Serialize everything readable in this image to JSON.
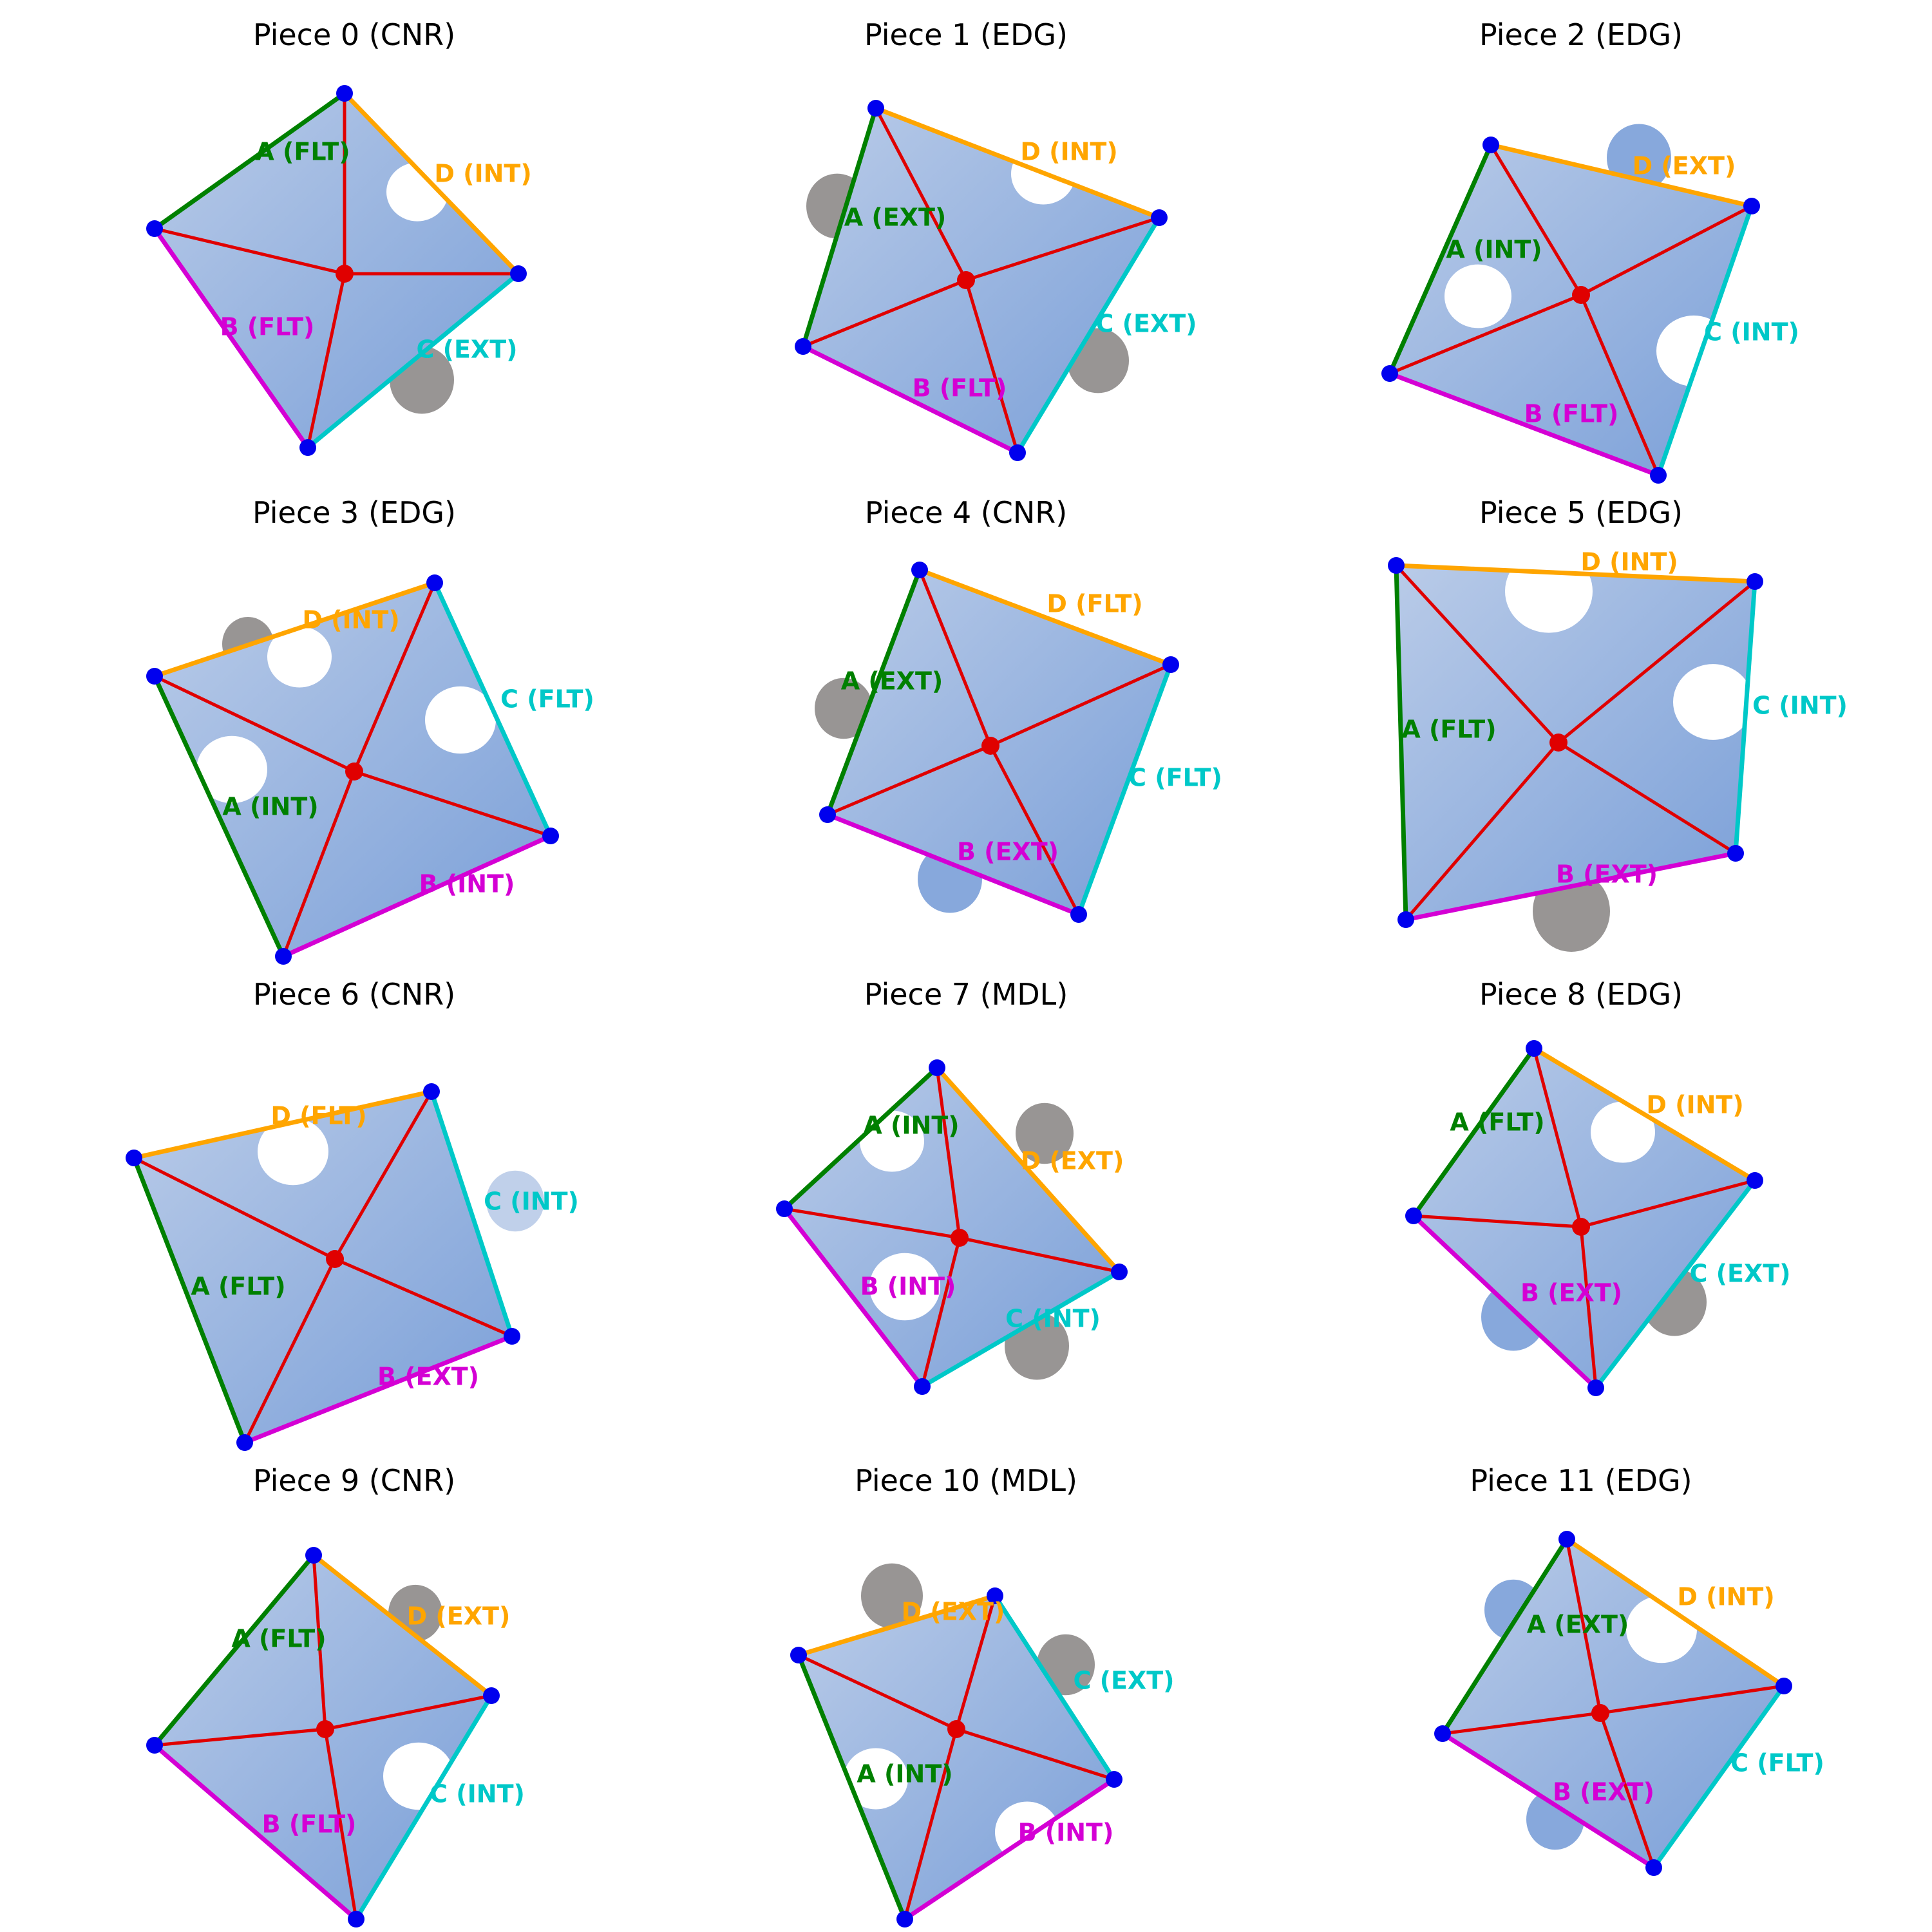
{
  "figure": {
    "colors": {
      "A": "#008000",
      "B": "#d400d4",
      "C": "#00c8c8",
      "D": "#ffa500",
      "spoke": "#e00000",
      "corner": "#0000ee",
      "center": "#e00000",
      "piece_fill": "#7a9fd8",
      "piece_fill_light": "#b9cbe8",
      "photo_gray": "#8d8a88",
      "snow": "#e8ecf2"
    },
    "pieces": [
      {
        "title": "Piece 0 (CNR)",
        "edges": [
          {
            "side": "A",
            "label": "A (FLT)"
          },
          {
            "side": "B",
            "label": "B (FLT)"
          },
          {
            "side": "C",
            "label": "C (EXT)"
          },
          {
            "side": "D",
            "label": "D (INT)"
          }
        ]
      },
      {
        "title": "Piece 1 (EDG)",
        "edges": [
          {
            "side": "A",
            "label": "A (EXT)"
          },
          {
            "side": "B",
            "label": "B (FLT)"
          },
          {
            "side": "C",
            "label": "C (EXT)"
          },
          {
            "side": "D",
            "label": "D (INT)"
          }
        ]
      },
      {
        "title": "Piece 2 (EDG)",
        "edges": [
          {
            "side": "A",
            "label": "A (INT)"
          },
          {
            "side": "B",
            "label": "B (FLT)"
          },
          {
            "side": "C",
            "label": "C (INT)"
          },
          {
            "side": "D",
            "label": "D (EXT)"
          }
        ]
      },
      {
        "title": "Piece 3 (EDG)",
        "edges": [
          {
            "side": "A",
            "label": "A (INT)"
          },
          {
            "side": "B",
            "label": "B (INT)"
          },
          {
            "side": "C",
            "label": "C (FLT)"
          },
          {
            "side": "D",
            "label": "D (INT)"
          }
        ]
      },
      {
        "title": "Piece 4 (CNR)",
        "edges": [
          {
            "side": "A",
            "label": "A (EXT)"
          },
          {
            "side": "B",
            "label": "B (EXT)"
          },
          {
            "side": "C",
            "label": "C (FLT)"
          },
          {
            "side": "D",
            "label": "D (FLT)"
          }
        ]
      },
      {
        "title": "Piece 5 (EDG)",
        "edges": [
          {
            "side": "A",
            "label": "A (FLT)"
          },
          {
            "side": "B",
            "label": "B (EXT)"
          },
          {
            "side": "C",
            "label": "C (INT)"
          },
          {
            "side": "D",
            "label": "D (INT)"
          }
        ]
      },
      {
        "title": "Piece 6 (CNR)",
        "edges": [
          {
            "side": "A",
            "label": "A (FLT)"
          },
          {
            "side": "B",
            "label": "B (EXT)"
          },
          {
            "side": "C",
            "label": "C (INT)"
          },
          {
            "side": "D",
            "label": "D (FLT)"
          }
        ]
      },
      {
        "title": "Piece 7 (MDL)",
        "edges": [
          {
            "side": "A",
            "label": "A (INT)"
          },
          {
            "side": "B",
            "label": "B (INT)"
          },
          {
            "side": "C",
            "label": "C (INT)"
          },
          {
            "side": "D",
            "label": "D (EXT)"
          }
        ]
      },
      {
        "title": "Piece 8 (EDG)",
        "edges": [
          {
            "side": "A",
            "label": "A (FLT)"
          },
          {
            "side": "B",
            "label": "B (EXT)"
          },
          {
            "side": "C",
            "label": "C (EXT)"
          },
          {
            "side": "D",
            "label": "D (INT)"
          }
        ]
      },
      {
        "title": "Piece 9 (CNR)",
        "edges": [
          {
            "side": "A",
            "label": "A (FLT)"
          },
          {
            "side": "B",
            "label": "B (FLT)"
          },
          {
            "side": "C",
            "label": "C (INT)"
          },
          {
            "side": "D",
            "label": "D (EXT)"
          }
        ]
      },
      {
        "title": "Piece 10 (MDL)",
        "edges": [
          {
            "side": "A",
            "label": "A (INT)"
          },
          {
            "side": "B",
            "label": "B (INT)"
          },
          {
            "side": "C",
            "label": "C (EXT)"
          },
          {
            "side": "D",
            "label": "D (EXT)"
          }
        ]
      },
      {
        "title": "Piece 11 (EDG)",
        "edges": [
          {
            "side": "A",
            "label": "A (EXT)"
          },
          {
            "side": "B",
            "label": "B (EXT)"
          },
          {
            "side": "C",
            "label": "C (FLT)"
          },
          {
            "side": "D",
            "label": "D (INT)"
          }
        ]
      }
    ]
  }
}
